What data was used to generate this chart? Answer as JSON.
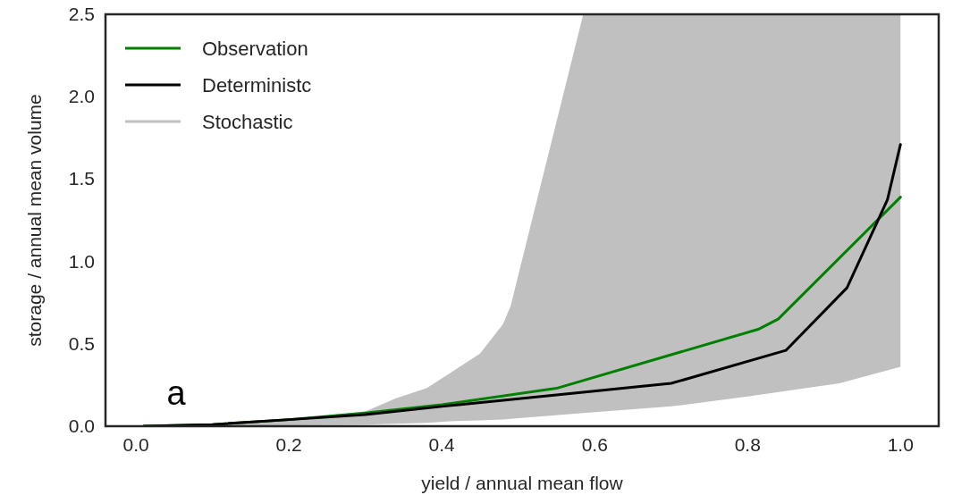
{
  "chart_data": {
    "type": "line",
    "xlabel": "yield / annual mean flow",
    "ylabel": "storage / annual mean volume",
    "xlim": [
      -0.04,
      1.05
    ],
    "ylim": [
      0,
      2.5
    ],
    "xticks": [
      {
        "value": 0,
        "label": "0.0"
      },
      0.2,
      0.4,
      0.6,
      0.8,
      {
        "value": 1,
        "label": "1.0"
      }
    ],
    "yticks": [
      {
        "value": 0,
        "label": "0.0"
      },
      0.5,
      {
        "value": 1,
        "label": "1.0"
      },
      1.5,
      {
        "value": 2,
        "label": "2.0"
      },
      2.5
    ],
    "grid": false,
    "legend": "top left",
    "annotations": [
      "a"
    ],
    "series": [
      {
        "name": "Stochastic",
        "color": "#c0c0c0",
        "x": [
          0.0,
          0.1,
          0.2,
          0.3,
          0.34,
          0.38,
          0.41,
          0.45,
          0.48,
          0.49,
          0.585,
          0.7,
          0.8,
          0.92,
          1.0
        ],
        "values": [
          null,
          null,
          null,
          null,
          null,
          null,
          null,
          null,
          null,
          null,
          null,
          null,
          null,
          null,
          null
        ],
        "lower": [
          0.0,
          0.0,
          0.005,
          0.01,
          0.015,
          0.02,
          0.03,
          0.035,
          0.04,
          0.045,
          0.08,
          0.12,
          0.18,
          0.26,
          0.36
        ],
        "upper": [
          0.0,
          0.01,
          0.04,
          0.09,
          0.17,
          0.23,
          0.32,
          0.44,
          0.62,
          0.73,
          2.5,
          2.5,
          2.5,
          2.5,
          2.5
        ]
      },
      {
        "name": "Observation",
        "color": "#008000",
        "x": [
          0.01,
          0.1,
          0.2,
          0.3,
          0.4,
          0.55,
          0.815,
          0.84,
          1.0
        ],
        "values": [
          0.0,
          0.01,
          0.04,
          0.08,
          0.13,
          0.23,
          0.59,
          0.65,
          1.39
        ]
      },
      {
        "name": "Deterministc",
        "color": "#000000",
        "x": [
          0.01,
          0.1,
          0.2,
          0.3,
          0.4,
          0.55,
          0.7,
          0.85,
          0.93,
          0.983,
          1.0
        ],
        "values": [
          0.0,
          0.01,
          0.04,
          0.07,
          0.12,
          0.19,
          0.26,
          0.46,
          0.84,
          1.375,
          1.71
        ]
      }
    ]
  }
}
